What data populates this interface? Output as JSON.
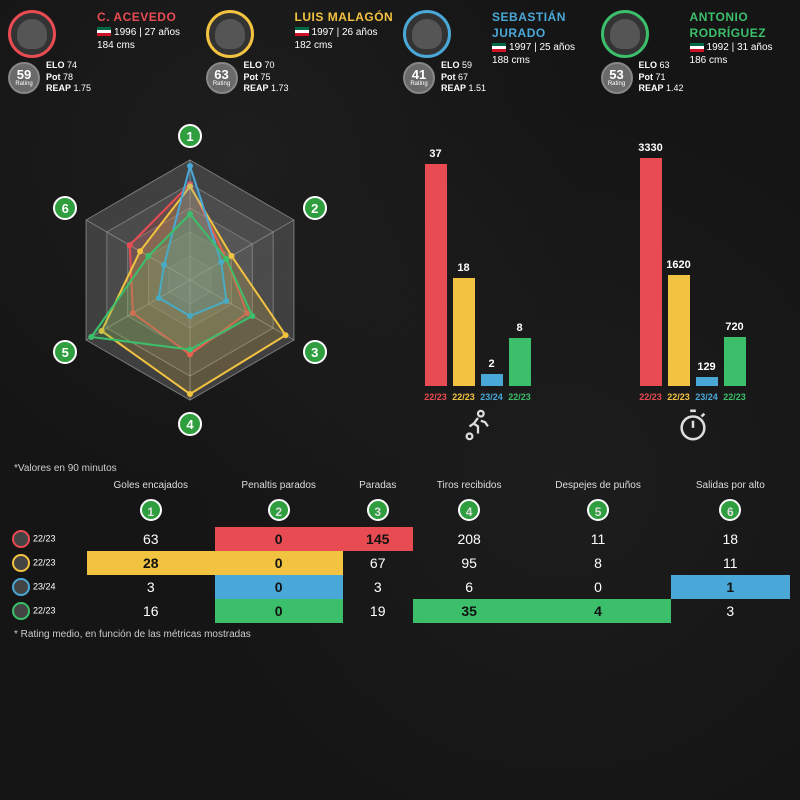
{
  "colors": {
    "p1": "#e94b52",
    "p2": "#f2c340",
    "p3": "#4aa8d8",
    "p4": "#3bbf6b",
    "badge_bg": "#2e9e3f",
    "grid": "#9a9a9a",
    "text": "#ffffff"
  },
  "players": [
    {
      "name": "C. ACEVEDO",
      "border": "#e94b52",
      "year": "1996",
      "age": "27 años",
      "height": "184 cms",
      "rating": "59",
      "elo": "74",
      "pot": "78",
      "reap": "1.75"
    },
    {
      "name": "LUIS MALAGÓN",
      "border": "#f2c340",
      "year": "1997",
      "age": "26 años",
      "height": "182 cms",
      "rating": "63",
      "elo": "70",
      "pot": "75",
      "reap": "1.73"
    },
    {
      "name": "SEBASTIÁN JURADO",
      "border": "#4aa8d8",
      "year": "1997",
      "age": "25 años",
      "height": "188 cms",
      "rating": "41",
      "elo": "59",
      "pot": "67",
      "reap": "1.51"
    },
    {
      "name": "ANTONIO RODRÍGUEZ",
      "border": "#3bbf6b",
      "year": "1992",
      "age": "31 años",
      "height": "186 cms",
      "rating": "53",
      "elo": "63",
      "pot": "71",
      "reap": "1.42"
    }
  ],
  "labels": {
    "elo": "ELO",
    "pot": "Pot",
    "reap": "REAP",
    "rating": "Rating"
  },
  "radar": {
    "axes": [
      "1",
      "2",
      "3",
      "4",
      "5",
      "6"
    ],
    "series": [
      {
        "color": "#e94b52",
        "values": [
          0.8,
          0.35,
          0.55,
          0.62,
          0.55,
          0.58
        ]
      },
      {
        "color": "#f2c340",
        "values": [
          0.78,
          0.4,
          0.92,
          0.95,
          0.85,
          0.48
        ]
      },
      {
        "color": "#4aa8d8",
        "values": [
          0.95,
          0.3,
          0.35,
          0.3,
          0.3,
          0.25
        ]
      },
      {
        "color": "#3bbf6b",
        "values": [
          0.55,
          0.35,
          0.6,
          0.58,
          0.95,
          0.4
        ]
      }
    ],
    "rings": 5
  },
  "barCharts": [
    {
      "icon": "runner",
      "max": 40,
      "bars": [
        {
          "value": 37,
          "color": "#e94b52",
          "season": "22/23",
          "seasonColor": "#e94b52"
        },
        {
          "value": 18,
          "color": "#f2c340",
          "season": "22/23",
          "seasonColor": "#f2c340"
        },
        {
          "value": 2,
          "color": "#4aa8d8",
          "season": "23/24",
          "seasonColor": "#4aa8d8"
        },
        {
          "value": 8,
          "color": "#3bbf6b",
          "season": "22/23",
          "seasonColor": "#3bbf6b"
        }
      ]
    },
    {
      "icon": "stopwatch",
      "max": 3500,
      "bars": [
        {
          "value": 3330,
          "color": "#e94b52",
          "season": "22/23",
          "seasonColor": "#e94b52"
        },
        {
          "value": 1620,
          "color": "#f2c340",
          "season": "22/23",
          "seasonColor": "#f2c340"
        },
        {
          "value": 129,
          "color": "#4aa8d8",
          "season": "23/24",
          "seasonColor": "#4aa8d8"
        },
        {
          "value": 720,
          "color": "#3bbf6b",
          "season": "22/23",
          "seasonColor": "#3bbf6b"
        }
      ]
    }
  ],
  "footnote_top": "*Valores en 90 minutos",
  "footnote_bottom": "* Rating medio, en función de las métricas mostradas",
  "table": {
    "headers": [
      {
        "n": "1",
        "label": "Goles encajados"
      },
      {
        "n": "2",
        "label": "Penaltis parados"
      },
      {
        "n": "3",
        "label": "Paradas"
      },
      {
        "n": "4",
        "label": "Tiros recibidos"
      },
      {
        "n": "5",
        "label": "Despejes de puños"
      },
      {
        "n": "6",
        "label": "Salidas por alto"
      }
    ],
    "rows": [
      {
        "border": "#e94b52",
        "season": "22/23",
        "cells": [
          {
            "v": "63"
          },
          {
            "v": "0",
            "bg": "#e94b52"
          },
          {
            "v": "145",
            "bg": "#e94b52"
          },
          {
            "v": "208"
          },
          {
            "v": "11"
          },
          {
            "v": "18"
          }
        ]
      },
      {
        "border": "#f2c340",
        "season": "22/23",
        "cells": [
          {
            "v": "28",
            "bg": "#f2c340"
          },
          {
            "v": "0",
            "bg": "#f2c340"
          },
          {
            "v": "67"
          },
          {
            "v": "95"
          },
          {
            "v": "8"
          },
          {
            "v": "11"
          }
        ]
      },
      {
        "border": "#4aa8d8",
        "season": "23/24",
        "cells": [
          {
            "v": "3"
          },
          {
            "v": "0",
            "bg": "#4aa8d8"
          },
          {
            "v": "3"
          },
          {
            "v": "6"
          },
          {
            "v": "0"
          },
          {
            "v": "1",
            "bg": "#4aa8d8"
          }
        ]
      },
      {
        "border": "#3bbf6b",
        "season": "22/23",
        "cells": [
          {
            "v": "16"
          },
          {
            "v": "0",
            "bg": "#3bbf6b"
          },
          {
            "v": "19"
          },
          {
            "v": "35",
            "bg": "#3bbf6b"
          },
          {
            "v": "4",
            "bg": "#3bbf6b"
          },
          {
            "v": "3"
          }
        ]
      }
    ]
  }
}
